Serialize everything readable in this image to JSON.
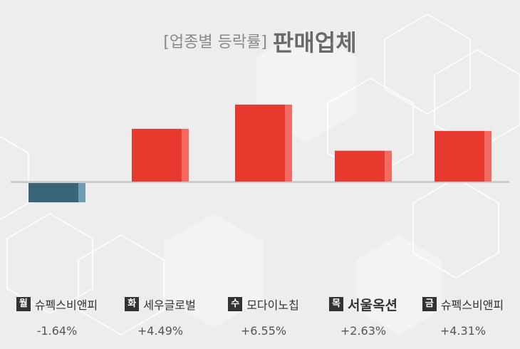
{
  "header": {
    "subtitle": "[업종별 등락률]",
    "title": "판매업체"
  },
  "colors": {
    "positive": "#e8392f",
    "positive_edge": "#f26a62",
    "negative": "#3a6478",
    "negative_edge": "#6f9db2",
    "baseline": "#cccccc"
  },
  "chart_data": {
    "type": "bar",
    "categories": [
      "월",
      "화",
      "수",
      "목",
      "금"
    ],
    "companies": [
      "슈펙스비앤피",
      "세우글로벌",
      "모다이노칩",
      "서울옥션",
      "슈펙스비앤피"
    ],
    "values": [
      -1.64,
      4.49,
      6.55,
      2.63,
      4.31
    ],
    "value_labels": [
      "-1.64%",
      "+4.49%",
      "+6.55%",
      "+2.63%",
      "+4.31%"
    ],
    "ylim": [
      -2,
      8
    ],
    "grid": false,
    "legend": "none"
  }
}
